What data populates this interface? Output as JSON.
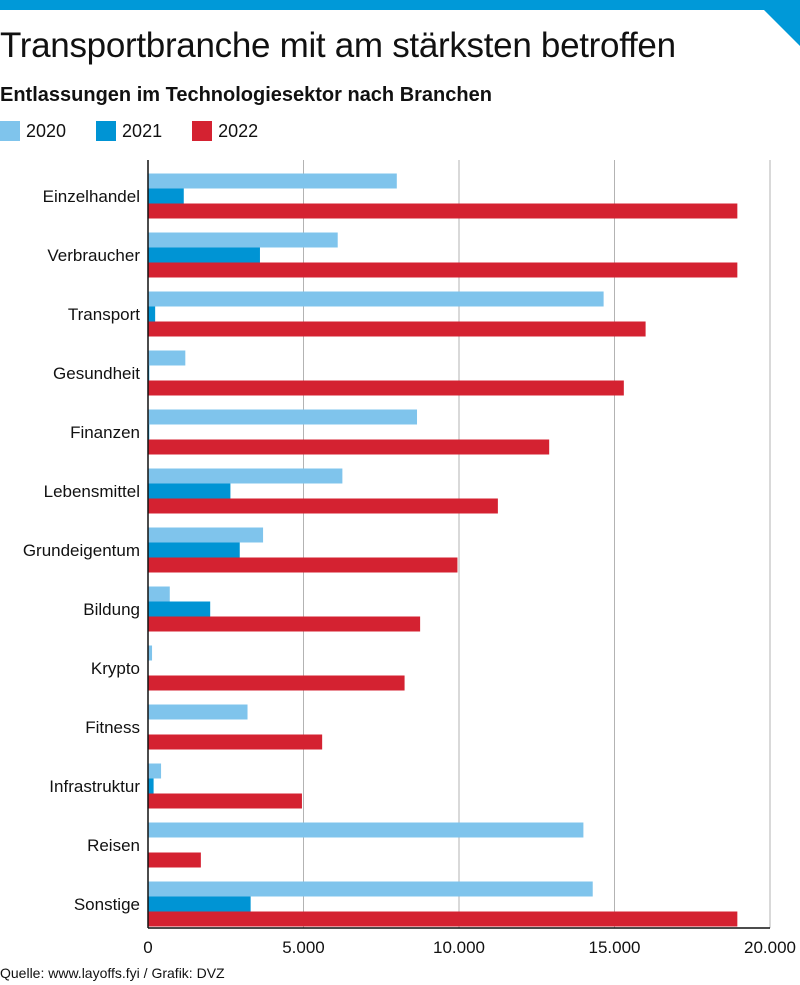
{
  "title": "Transportbranche mit am stärksten betroffen",
  "subtitle": "Entlassungen im Technologiesektor nach Branchen",
  "footer": "Quelle: www.layoffs.fyi / Grafik: DVZ",
  "colors": {
    "brand_bar": "#0099d8",
    "s2020": "#7fc4ec",
    "s2021": "#0094d4",
    "s2022": "#d42231",
    "grid": "#b3b3b3",
    "axis": "#111111"
  },
  "chart_data": {
    "type": "bar",
    "orientation": "horizontal",
    "title": "Transportbranche mit am stärksten betroffen",
    "subtitle": "Entlassungen im Technologiesektor nach Branchen",
    "categories": [
      "Einzelhandel",
      "Verbraucher",
      "Transport",
      "Gesundheit",
      "Finanzen",
      "Lebensmittel",
      "Grundeigentum",
      "Bildung",
      "Krypto",
      "Fitness",
      "Infrastruktur",
      "Reisen",
      "Sonstige"
    ],
    "series": [
      {
        "name": "2020",
        "color": "#7fc4ec",
        "values": [
          8000,
          6100,
          14650,
          1200,
          8650,
          6250,
          3700,
          700,
          130,
          3200,
          420,
          14000,
          14300
        ]
      },
      {
        "name": "2021",
        "color": "#0094d4",
        "values": [
          1150,
          3600,
          230,
          40,
          40,
          2650,
          2950,
          2000,
          0,
          0,
          180,
          0,
          3300
        ]
      },
      {
        "name": "2022",
        "color": "#d42231",
        "values": [
          18950,
          18950,
          16000,
          15300,
          12900,
          11250,
          9950,
          8750,
          8250,
          5600,
          4950,
          1700,
          18950
        ]
      }
    ],
    "xlim": [
      0,
      20000
    ],
    "xticks": [
      0,
      5000,
      10000,
      15000,
      20000
    ],
    "xtick_labels": [
      "0",
      "5.000",
      "10.000",
      "15.000",
      "20.000"
    ],
    "legend_position": "top-left",
    "grid": "vertical"
  }
}
